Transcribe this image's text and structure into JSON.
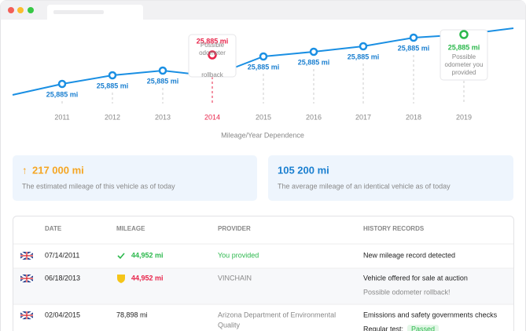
{
  "chart": {
    "title": "Mileage/Year Dependence",
    "points": [
      {
        "year": "2011",
        "label": "25,885 mi"
      },
      {
        "year": "2012",
        "label": "25,885 mi"
      },
      {
        "year": "2013",
        "label": "25,885 mi"
      },
      {
        "year": "2014",
        "label": "25,885 mi",
        "tooltip": [
          "Possible",
          "odometer",
          "rollback"
        ]
      },
      {
        "year": "2015",
        "label": "25,885 mi"
      },
      {
        "year": "2016",
        "label": "25,885 mi"
      },
      {
        "year": "2017",
        "label": "25,885 mi"
      },
      {
        "year": "2018",
        "label": "25,885 mi"
      },
      {
        "year": "2019",
        "label": "25,885 mi",
        "tooltip": [
          "Possible",
          "odometer you",
          "provided"
        ]
      }
    ]
  },
  "cards": [
    {
      "value": "217 000 mi",
      "text": "The estimated mileage of this vehicle as of today"
    },
    {
      "value": "105 200 mi",
      "text": "The average mileage of an identical vehicle as of today"
    }
  ],
  "table": {
    "headers": [
      "DATE",
      "MILEAGE",
      "PROVIDER",
      "HISTORY RECORDS"
    ],
    "rows": [
      {
        "date": "07/14/2011",
        "mileage": "44,952 mi",
        "provider": [
          "You provided"
        ],
        "records": [
          "New mileage record detected"
        ]
      },
      {
        "date": "06/18/2013",
        "mileage": "44,952 mi",
        "provider": [
          "VINCHAIN"
        ],
        "records": [
          "Vehicle offered for sale at auction",
          "Possible odometer rollback!"
        ]
      },
      {
        "date": "02/04/2015",
        "mileage": "78,898 mi",
        "provider": [
          "Arizona Department of Environmental",
          "Quality"
        ],
        "records": [
          "Emissions and safety governments checks"
        ],
        "test_label": "Regular test:",
        "test_result": "Passed"
      }
    ]
  }
}
